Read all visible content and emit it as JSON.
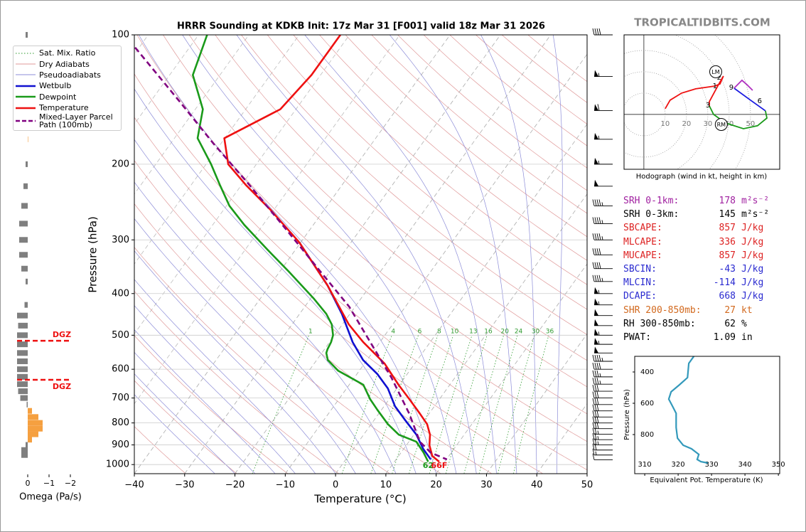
{
  "header": {
    "brand": "TROPICALTIDBITS.COM"
  },
  "chart_data": [
    {
      "type": "skewt",
      "title": "HRRR Sounding at KDKB Init: 17z Mar 31 [F001] valid 18z Mar 31 2026",
      "x_label": "Temperature (°C)",
      "y_label": "Pressure (hPa)",
      "xlim": [
        -40,
        50
      ],
      "ylim": [
        1050,
        100
      ],
      "xticks": [
        {
          "value": -40,
          "label": "−40"
        },
        {
          "value": -30,
          "label": "−30"
        },
        {
          "value": -20,
          "label": "−20"
        },
        {
          "value": -10,
          "label": "−10"
        },
        0,
        10,
        20,
        30,
        40,
        50
      ],
      "yticks": [
        100,
        200,
        300,
        400,
        500,
        600,
        700,
        800,
        900,
        1000
      ],
      "grid": true,
      "legend": "upper left",
      "background_lines": [
        {
          "name": "Sat. Mix. Ratio",
          "color": "#2e9a2e",
          "linestyle": "dotted"
        },
        {
          "name": "Dry Adiabats",
          "color": "#e09a9a",
          "linestyle": "solid"
        },
        {
          "name": "Pseudoadiabats",
          "color": "#8c8cd8",
          "linestyle": "solid"
        }
      ],
      "mixing_ratio_labels": [
        1,
        4,
        6,
        8,
        10,
        13,
        16,
        20,
        24,
        30,
        36
      ],
      "series": [
        {
          "name": "Wetbulb",
          "color": "#1010d0",
          "linestyle": "solid",
          "pressure": [
            304,
            383,
            446,
            519,
            571,
            616,
            665,
            732,
            790,
            852,
            920,
            973
          ],
          "values": [
            -40.3,
            -28.5,
            -21.6,
            -15.4,
            -10.8,
            -5.9,
            -1.8,
            2.2,
            6.3,
            10.5,
            13.9,
            16.9
          ]
        },
        {
          "name": "Dewpoint",
          "color": "#1a9a1a",
          "linestyle": "solid",
          "surface_label": "62",
          "pressure": [
            100,
            124,
            149,
            174,
            200,
            224,
            250,
            277,
            316,
            355,
            410,
            446,
            472,
            500,
            519,
            539,
            550,
            571,
            605,
            652,
            704,
            746,
            805,
            852,
            885,
            938,
            985
          ],
          "values": [
            -88.3,
            -85.4,
            -78.5,
            -75.4,
            -69.0,
            -64.2,
            -59.4,
            -53.7,
            -45.6,
            -38.3,
            -29.5,
            -24.7,
            -22.1,
            -20.3,
            -19.7,
            -19.4,
            -19.1,
            -17.8,
            -14.2,
            -7.2,
            -3.8,
            -0.8,
            3.3,
            7.0,
            11.5,
            14.5,
            16.7
          ]
        },
        {
          "name": "Temperature",
          "color": "#ee1111",
          "linestyle": "solid",
          "surface_label": "66F",
          "pressure": [
            100,
            124,
            149,
            174,
            200,
            224,
            256,
            304,
            383,
            472,
            519,
            582,
            652,
            704,
            760,
            805,
            852,
            902,
            955,
            985
          ],
          "values": [
            -61.8,
            -61.8,
            -63.1,
            -70.1,
            -65.6,
            -59.0,
            -50.5,
            -40.3,
            -28.5,
            -18.7,
            -13.3,
            -6.0,
            -0.2,
            4.0,
            8.1,
            11.1,
            13.2,
            14.6,
            16.7,
            18.9
          ]
        },
        {
          "name": "Mixed-Layer Parcel Path (100mb)",
          "color": "#800080",
          "linestyle": "dashed",
          "pressure": [
            107,
            142,
            179,
            224,
            282,
            355,
            429,
            519,
            628,
            760,
            885,
            938,
            973
          ],
          "values": [
            -100.8,
            -84.6,
            -71.5,
            -58.3,
            -45.1,
            -32.0,
            -21.2,
            -11.9,
            -2.6,
            6.0,
            12.2,
            15.9,
            20.1
          ]
        }
      ],
      "wind_barbs": {
        "pressure": [
          100,
          125,
          150,
          175,
          200,
          225,
          250,
          275,
          300,
          325,
          350,
          375,
          400,
          425,
          450,
          475,
          500,
          525,
          550,
          575,
          600,
          625,
          650,
          675,
          700,
          725,
          750,
          775,
          800,
          825,
          850,
          875,
          900,
          925,
          950,
          975
        ],
        "speed": [
          40,
          55,
          60,
          55,
          55,
          50,
          45,
          45,
          45,
          40,
          40,
          45,
          55,
          55,
          50,
          50,
          55,
          55,
          50,
          45,
          40,
          35,
          35,
          30,
          30,
          30,
          30,
          30,
          30,
          30,
          25,
          25,
          25,
          20,
          15,
          10
        ]
      }
    },
    {
      "type": "bar",
      "x_label": "Omega (Pa/s)",
      "xlim": [
        0.5,
        -2.2
      ],
      "xticks": [
        0,
        {
          "value": -1,
          "label": "−1"
        },
        {
          "value": -2,
          "label": "−2"
        }
      ],
      "color": "#7f7f7f",
      "negative_color": "#f5a040",
      "pressure": [
        100,
        125,
        150,
        175,
        200,
        225,
        250,
        275,
        300,
        325,
        350,
        375,
        425,
        450,
        475,
        500,
        525,
        550,
        575,
        600,
        625,
        650,
        675,
        700,
        725,
        750,
        775,
        800,
        825,
        850,
        875,
        900,
        925,
        950
      ],
      "values": [
        0.1,
        -0.1,
        -0.2,
        -0.02,
        0.1,
        0.2,
        0.3,
        0.4,
        0.4,
        0.4,
        0.3,
        0.1,
        0.15,
        0.5,
        0.45,
        0.5,
        0.5,
        0.5,
        0.5,
        0.5,
        0.5,
        0.5,
        0.45,
        0.35,
        0.05,
        -0.2,
        -0.5,
        -0.7,
        -0.7,
        -0.5,
        -0.2,
        0.1,
        0.3,
        0.3
      ],
      "dgz": [
        {
          "pressure": 515,
          "label": "DGZ"
        },
        {
          "pressure": 635,
          "label": "DGZ"
        }
      ]
    },
    {
      "type": "hodograph",
      "caption": "Hodograph (wind in kt, height in km)",
      "xlim": [
        -9.3,
        63.7
      ],
      "ylim": [
        -25.7,
        37.3
      ],
      "rings": [
        10,
        20,
        30,
        40,
        50
      ],
      "series": [
        {
          "color": "#ee1111",
          "u": [
            10,
            12.3,
            17.7,
            24.3,
            33.3,
            35.7,
            37.3,
            35,
            30.7,
            30.7
          ],
          "v": [
            2.7,
            6.7,
            10,
            12,
            13.3,
            14.3,
            18,
            14,
            6,
            4
          ]
        },
        {
          "color": "#1a9a1a",
          "u": [
            30.7,
            32.7,
            38.3,
            46.7,
            53.3,
            57.7,
            57
          ],
          "v": [
            4,
            0,
            -4,
            -6.7,
            -5.3,
            -1.7,
            1.7
          ]
        },
        {
          "color": "#1a1ae0",
          "u": [
            57,
            50,
            42.3
          ],
          "v": [
            1.7,
            6.7,
            12.3
          ]
        },
        {
          "color": "#b030c0",
          "u": [
            42.3,
            46,
            48.3,
            51
          ],
          "v": [
            12.3,
            16,
            14,
            11.3
          ]
        }
      ],
      "height_labels": [
        {
          "text": "1",
          "u": 33.3,
          "v": 13.3
        },
        {
          "text": "2",
          "u": 35.3,
          "v": 17.3
        },
        {
          "text": "3",
          "u": 30,
          "v": 4.3
        },
        {
          "text": "6",
          "u": 54.3,
          "v": 6.3
        },
        {
          "text": "9",
          "u": 41,
          "v": 12.7
        }
      ],
      "storm_motions": [
        {
          "label": "LM",
          "u": 33.7,
          "v": 20
        },
        {
          "label": "RM",
          "u": 36.3,
          "v": -4.7
        }
      ]
    },
    {
      "type": "line",
      "x_label": "Equivalent Pot. Temperature (K)",
      "y_label": "Pressure (hPa)",
      "xlim": [
        307,
        350.4
      ],
      "ylim": [
        1050,
        300
      ],
      "xticks": [
        310,
        320,
        330,
        340,
        350
      ],
      "yticks": [
        400,
        600,
        800
      ],
      "series": [
        {
          "color": "#3399bb",
          "pressure": [
            300,
            345,
            436,
            482,
            527,
            573,
            618,
            664,
            755,
            823,
            868,
            891,
            927,
            959,
            973,
            982
          ],
          "values": [
            324.7,
            323.2,
            322.8,
            320.4,
            317.9,
            317.2,
            318.3,
            319.4,
            319.4,
            319.8,
            321.5,
            324.0,
            326.2,
            325.7,
            326.8,
            328.9
          ]
        }
      ]
    }
  ],
  "stats": [
    {
      "label": "SRH 0-1km:",
      "value": 178,
      "unit": "m²s⁻²",
      "color": "#a020a0"
    },
    {
      "label": "SRH 0-3km:",
      "value": 145,
      "unit": "m²s⁻²",
      "color": "#000000"
    },
    {
      "label": "SBCAPE:",
      "value": 857,
      "unit": "J/kg",
      "color": "#dd2222"
    },
    {
      "label": "MLCAPE:",
      "value": 336,
      "unit": "J/kg",
      "color": "#dd2222"
    },
    {
      "label": "MUCAPE:",
      "value": 857,
      "unit": "J/kg",
      "color": "#dd2222"
    },
    {
      "label": "SBCIN:",
      "value": -43,
      "unit": "J/kg",
      "color": "#2a2ad0"
    },
    {
      "label": "MLCIN:",
      "value": -114,
      "unit": "J/kg",
      "color": "#2a2ad0"
    },
    {
      "label": "DCAPE:",
      "value": 668,
      "unit": "J/kg",
      "color": "#2a2ad0"
    },
    {
      "label": "SHR 200-850mb:",
      "value": 27,
      "unit": "kt",
      "color": "#d2691e"
    },
    {
      "label": "RH 300-850mb:",
      "value": 62,
      "unit": "%",
      "color": "#000000"
    },
    {
      "label": "PWAT:",
      "value": 1.09,
      "unit": "in",
      "color": "#000000"
    }
  ]
}
